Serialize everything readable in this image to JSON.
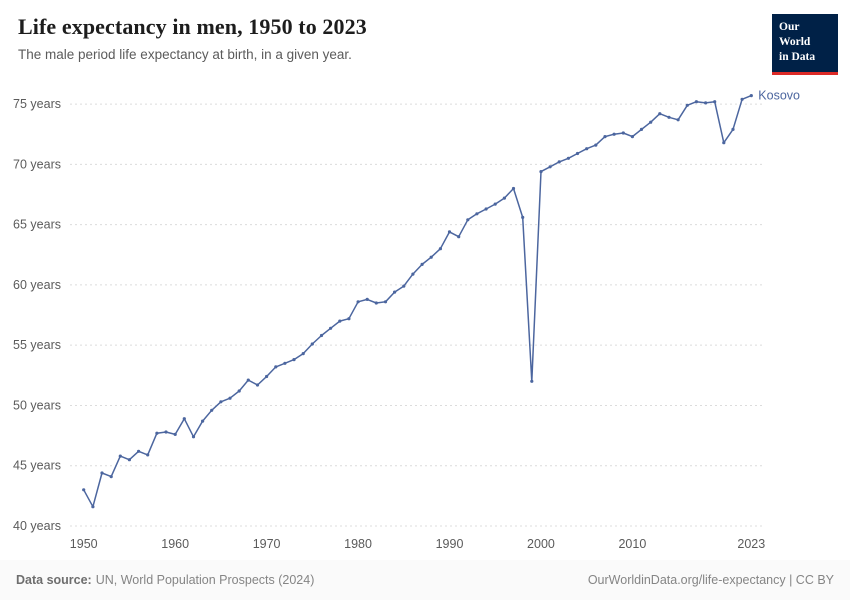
{
  "header": {
    "title": "Life expectancy in men, 1950 to 2023",
    "subtitle": "The male period life expectancy at birth, in a given year."
  },
  "logo": {
    "line1": "Our World",
    "line2": "in Data",
    "bg_color": "#002147",
    "accent_color": "#dc2a27"
  },
  "footer": {
    "source_label": "Data source:",
    "source_text": "UN, World Population Prospects (2024)",
    "right": "OurWorldinData.org/life-expectancy | CC BY"
  },
  "chart_data": {
    "type": "line",
    "title": "Life expectancy in men, 1950 to 2023",
    "subtitle": "The male period life expectancy at birth, in a given year.",
    "xlabel": "",
    "ylabel": "",
    "grid": "horizontal-dashed",
    "legend_position": "end-of-line-label",
    "xlim": [
      1948.5,
      2024.5
    ],
    "ylim": [
      40,
      76.5
    ],
    "x_ticks": [
      1950,
      1960,
      1970,
      1980,
      1990,
      2000,
      2010,
      2023
    ],
    "y_ticks": [
      40,
      45,
      50,
      55,
      60,
      65,
      70,
      75
    ],
    "y_tick_suffix": " years",
    "series": [
      {
        "name": "Kosovo",
        "color": "#4c669f",
        "x": [
          1950,
          1951,
          1952,
          1953,
          1954,
          1955,
          1956,
          1957,
          1958,
          1959,
          1960,
          1961,
          1962,
          1963,
          1964,
          1965,
          1966,
          1967,
          1968,
          1969,
          1970,
          1971,
          1972,
          1973,
          1974,
          1975,
          1976,
          1977,
          1978,
          1979,
          1980,
          1981,
          1982,
          1983,
          1984,
          1985,
          1986,
          1987,
          1988,
          1989,
          1990,
          1991,
          1992,
          1993,
          1994,
          1995,
          1996,
          1997,
          1998,
          1999,
          2000,
          2001,
          2002,
          2003,
          2004,
          2005,
          2006,
          2007,
          2008,
          2009,
          2010,
          2011,
          2012,
          2013,
          2014,
          2015,
          2016,
          2017,
          2018,
          2019,
          2020,
          2021,
          2022,
          2023
        ],
        "values": [
          43.0,
          41.6,
          44.4,
          44.1,
          45.8,
          45.5,
          46.2,
          45.9,
          47.7,
          47.8,
          47.6,
          48.9,
          47.4,
          48.7,
          49.6,
          50.3,
          50.6,
          51.2,
          52.1,
          51.7,
          52.4,
          53.2,
          53.5,
          53.8,
          54.3,
          55.1,
          55.8,
          56.4,
          57.0,
          57.2,
          58.6,
          58.8,
          58.5,
          58.6,
          59.4,
          59.9,
          60.9,
          61.7,
          62.3,
          63.0,
          64.4,
          64.0,
          65.4,
          65.9,
          66.3,
          66.7,
          67.2,
          68.0,
          65.6,
          52.0,
          69.4,
          69.8,
          70.2,
          70.5,
          70.9,
          71.3,
          71.6,
          72.3,
          72.5,
          72.6,
          72.3,
          72.9,
          73.5,
          74.2,
          73.9,
          73.7,
          74.9,
          75.2,
          75.1,
          75.2,
          71.8,
          72.9,
          75.4,
          75.7
        ]
      }
    ]
  }
}
